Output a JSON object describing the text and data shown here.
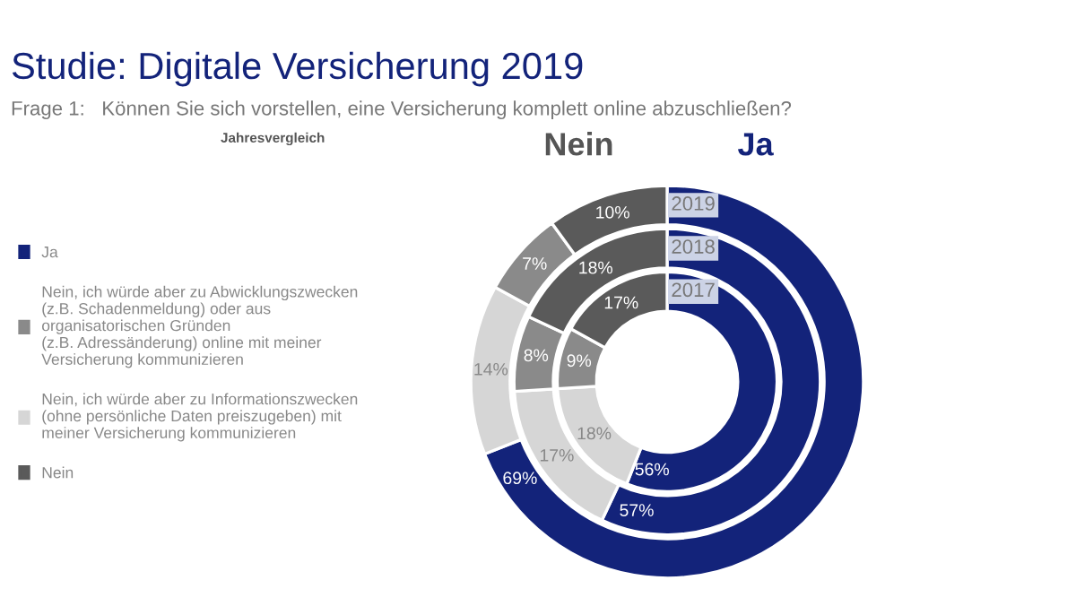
{
  "chart_data": {
    "type": "donut",
    "title": "Studie: Digitale Versicherung 2019",
    "subtitle": "Frage 1:   Können Sie sich vorstellen, eine Versicherung komplett online abzuschließen?",
    "annotations": [
      "Jahresvergleich",
      "Nein",
      "Ja"
    ],
    "categories": [
      "Ja",
      "Nein, ich würde aber zu Abwicklungszwecken\n(z.B. Schadenmeldung) oder aus\norganisatorischen Gründen\n(z.B. Adressänderung) online mit meiner\nVersicherung kommunizieren",
      "Nein, ich würde aber zu Informationszwecken\n(ohne persönliche Daten preiszugeben) mit\nmeiner Versicherung kommunizieren",
      "Nein"
    ],
    "colors": [
      "#13237a",
      "#8a8a8a",
      "#d6d6d6",
      "#5a5a5a"
    ],
    "legend": "left",
    "series": [
      {
        "name": "2019",
        "values": [
          69,
          7,
          14,
          10
        ],
        "value_labels": [
          "69%",
          "7%",
          "14%",
          "10%"
        ]
      },
      {
        "name": "2018",
        "values": [
          57,
          8,
          17,
          18
        ],
        "value_labels": [
          "57%",
          "8%",
          "17%",
          "18%"
        ]
      },
      {
        "name": "2017",
        "values": [
          56,
          9,
          18,
          17
        ],
        "value_labels": [
          "56%",
          "9%",
          "18%",
          "17%"
        ]
      }
    ]
  }
}
